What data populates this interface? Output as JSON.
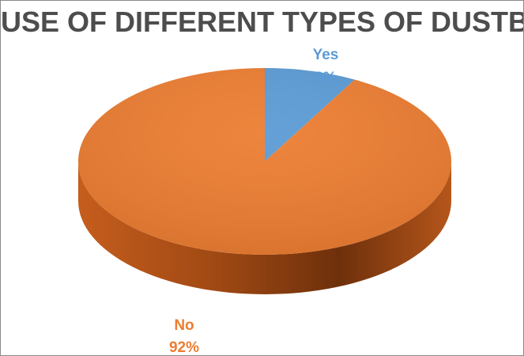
{
  "chart_data": {
    "type": "pie",
    "title": "USE OF DIFFERENT TYPES OF DUSTBIN",
    "slices": [
      {
        "label": "Yes",
        "value": 8,
        "value_label": "8%",
        "color": "#5b9bd5"
      },
      {
        "label": "No",
        "value": 92,
        "value_label": "92%",
        "color": "#ed7d31"
      }
    ],
    "style": "3d",
    "legend": "none"
  }
}
